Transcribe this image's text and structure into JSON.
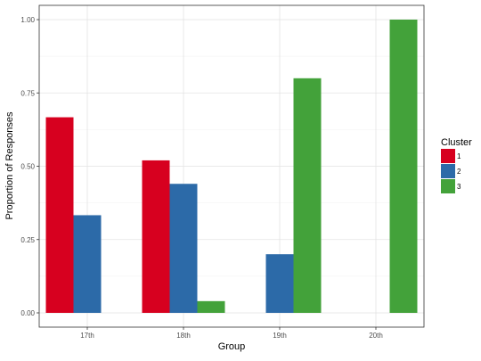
{
  "chart_data": {
    "type": "bar",
    "xlabel": "Group",
    "ylabel": "Proportion of Responses",
    "categories": [
      "17th",
      "18th",
      "19th",
      "20th"
    ],
    "ylim": [
      0,
      1.0
    ],
    "yticks": [
      "0.00",
      "0.25",
      "0.50",
      "0.75",
      "1.00"
    ],
    "ytick_values": [
      0,
      0.25,
      0.5,
      0.75,
      1.0
    ],
    "grid": true,
    "legend": {
      "title": "Cluster",
      "placement": "right"
    },
    "series": [
      {
        "name": "1",
        "color": "#d7001f",
        "values": [
          0.667,
          0.52,
          null,
          null
        ]
      },
      {
        "name": "2",
        "color": "#2c6aa8",
        "values": [
          0.333,
          0.44,
          0.2,
          null
        ]
      },
      {
        "name": "3",
        "color": "#43a23a",
        "values": [
          null,
          0.04,
          0.8,
          1.0
        ]
      }
    ]
  }
}
